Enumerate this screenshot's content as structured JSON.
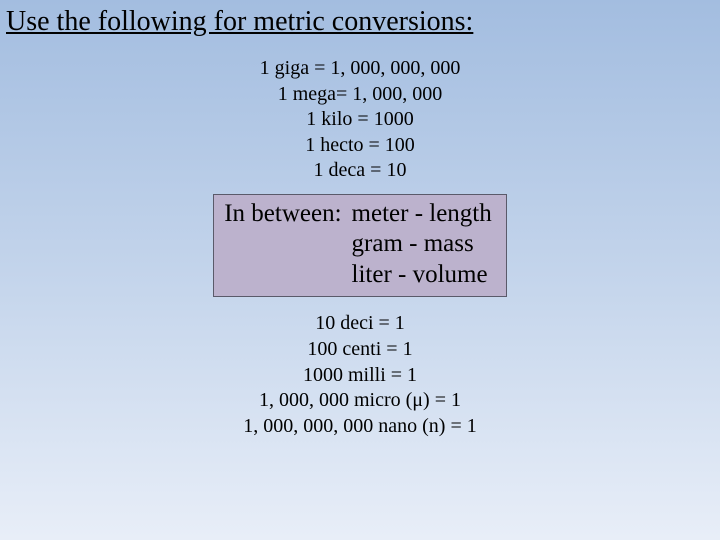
{
  "title": "Use the following for metric conversions:",
  "upper": {
    "l1": "1 giga = 1, 000, 000, 000",
    "l2": "1 mega= 1, 000, 000",
    "l3": "1 kilo = 1000",
    "l4": "1 hecto = 100",
    "l5": "1 deca = 10"
  },
  "middle": {
    "label": "In between:",
    "r1": "meter - length",
    "r2": "gram - mass",
    "r3": "liter - volume",
    "box_bg": "#bcb2cd",
    "box_border": "#5a5a6a"
  },
  "lower": {
    "l1": "10 deci = 1",
    "l2": "100 centi = 1",
    "l3": "1000 milli = 1",
    "l4": "1, 000, 000 micro (μ) = 1",
    "l5": "1, 000, 000, 000 nano (n) = 1"
  },
  "style": {
    "bg_top": "#a3bde0",
    "bg_mid": "#c3d4eb",
    "bg_bottom": "#e8eef8",
    "title_fontsize": 28,
    "body_fontsize": 20,
    "middle_fontsize": 25,
    "text_color": "#000000",
    "font_family": "Times New Roman"
  }
}
